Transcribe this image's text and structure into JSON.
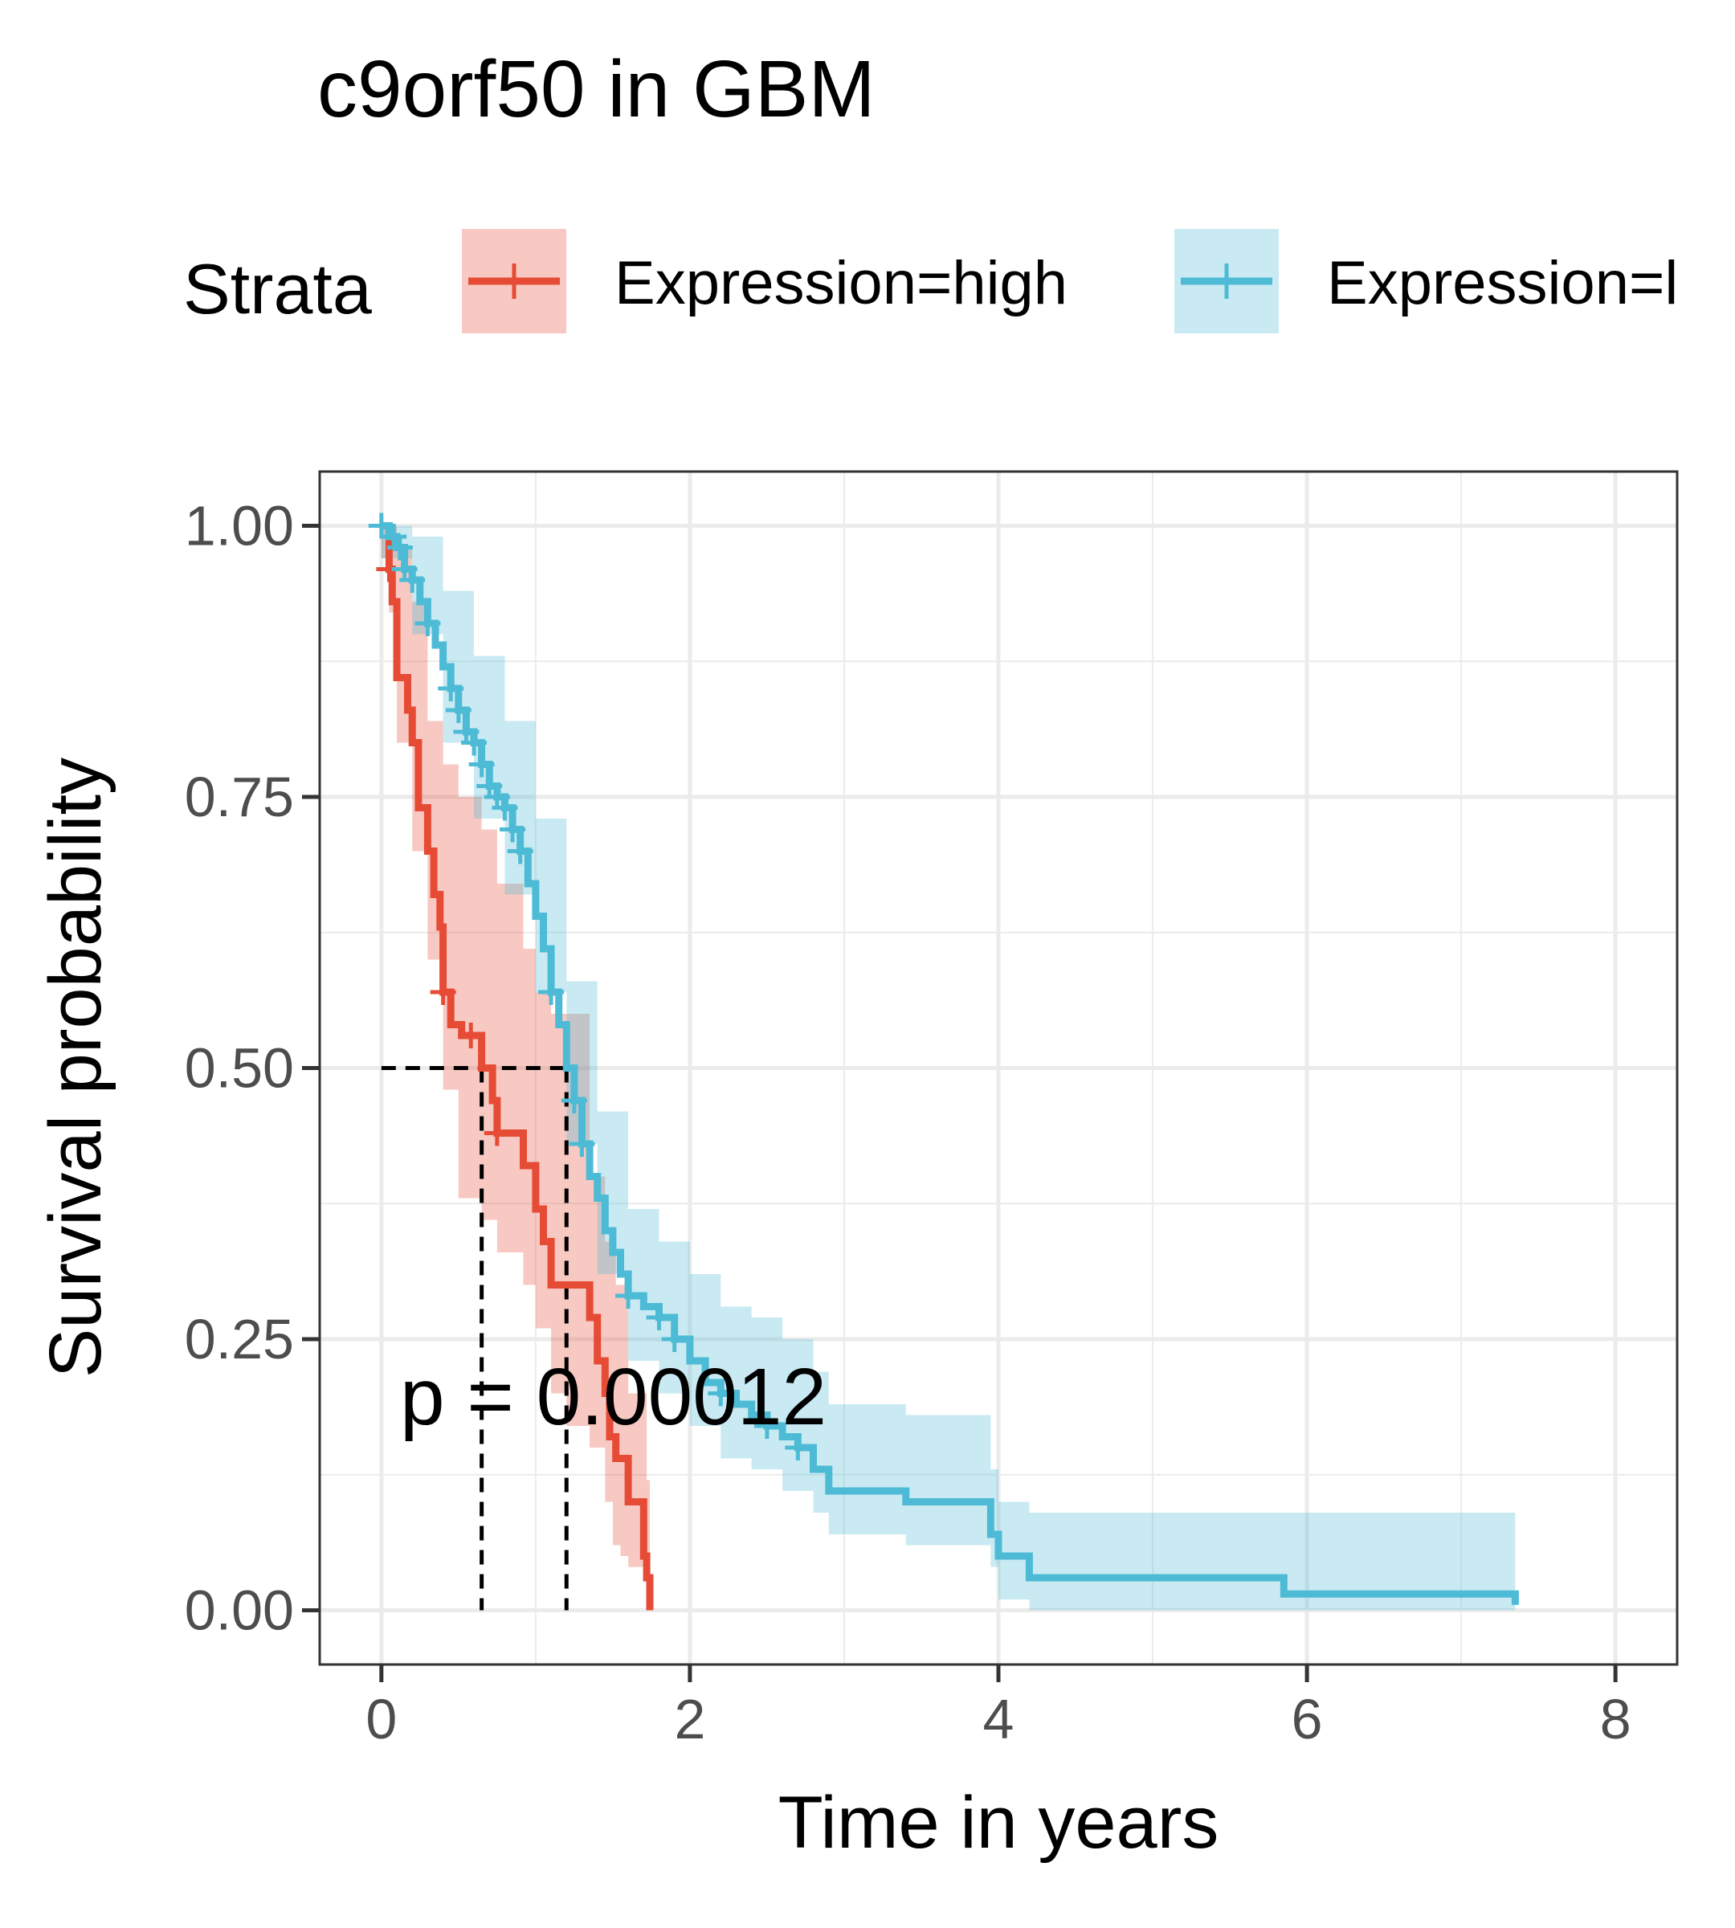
{
  "chart_data": {
    "type": "line",
    "title": "c9orf50 in GBM",
    "xlabel": "Time in years",
    "ylabel": "Survival probability",
    "xlim": [
      -0.4,
      8.4
    ],
    "ylim": [
      -0.05,
      1.05
    ],
    "x_ticks": [
      "0",
      "2",
      "4",
      "6",
      "8"
    ],
    "y_ticks": [
      "0.00",
      "0.25",
      "0.50",
      "0.75",
      "1.00"
    ],
    "grid": true,
    "legend": {
      "title": "Strata",
      "position": "top",
      "entries": [
        "Expression=high",
        "Expression=l"
      ]
    },
    "annotation": "p = 0.00012",
    "median_survival": {
      "y": 0.5,
      "x": [
        0.65,
        1.2
      ]
    },
    "series": [
      {
        "name": "Expression=high",
        "color": "#E64B35",
        "ci_color": "#F4B8AE",
        "steps": [
          [
            0,
            1.0
          ],
          [
            0.05,
            0.96
          ],
          [
            0.07,
            0.93
          ],
          [
            0.1,
            0.86
          ],
          [
            0.17,
            0.83
          ],
          [
            0.2,
            0.8
          ],
          [
            0.24,
            0.74
          ],
          [
            0.3,
            0.7
          ],
          [
            0.34,
            0.66
          ],
          [
            0.38,
            0.63
          ],
          [
            0.4,
            0.57
          ],
          [
            0.45,
            0.54
          ],
          [
            0.52,
            0.53
          ],
          [
            0.65,
            0.5
          ],
          [
            0.72,
            0.47
          ],
          [
            0.75,
            0.44
          ],
          [
            0.92,
            0.41
          ],
          [
            1.0,
            0.37
          ],
          [
            1.05,
            0.34
          ],
          [
            1.1,
            0.3
          ],
          [
            1.35,
            0.27
          ],
          [
            1.4,
            0.23
          ],
          [
            1.45,
            0.2
          ],
          [
            1.48,
            0.16
          ],
          [
            1.52,
            0.14
          ],
          [
            1.6,
            0.1
          ],
          [
            1.7,
            0.05
          ],
          [
            1.72,
            0.03
          ],
          [
            1.74,
            0.0
          ]
        ],
        "ci_lower": [
          [
            0,
            0.97
          ],
          [
            0.05,
            0.92
          ],
          [
            0.1,
            0.8
          ],
          [
            0.2,
            0.7
          ],
          [
            0.3,
            0.6
          ],
          [
            0.4,
            0.48
          ],
          [
            0.5,
            0.38
          ],
          [
            0.65,
            0.36
          ],
          [
            0.75,
            0.33
          ],
          [
            0.92,
            0.3
          ],
          [
            1.0,
            0.26
          ],
          [
            1.1,
            0.2
          ],
          [
            1.2,
            0.17
          ],
          [
            1.35,
            0.15
          ],
          [
            1.45,
            0.1
          ],
          [
            1.5,
            0.06
          ],
          [
            1.55,
            0.05
          ],
          [
            1.6,
            0.04
          ],
          [
            1.72,
            0.0
          ],
          [
            1.74,
            0.0
          ]
        ],
        "ci_upper": [
          [
            0,
            1.0
          ],
          [
            0.1,
            0.98
          ],
          [
            0.2,
            0.93
          ],
          [
            0.3,
            0.82
          ],
          [
            0.4,
            0.78
          ],
          [
            0.5,
            0.75
          ],
          [
            0.65,
            0.72
          ],
          [
            0.75,
            0.67
          ],
          [
            0.92,
            0.61
          ],
          [
            1.0,
            0.57
          ],
          [
            1.1,
            0.55
          ],
          [
            1.35,
            0.4
          ],
          [
            1.45,
            0.34
          ],
          [
            1.52,
            0.3
          ],
          [
            1.6,
            0.2
          ],
          [
            1.72,
            0.12
          ],
          [
            1.74,
            0.0
          ]
        ],
        "censor_x": [
          0.05,
          0.4,
          0.58,
          0.75
        ]
      },
      {
        "name": "Expression=l",
        "color": "#4DBBD5",
        "ci_color": "#C7E8F0",
        "steps": [
          [
            0,
            1.0
          ],
          [
            0.05,
            0.99
          ],
          [
            0.1,
            0.98
          ],
          [
            0.15,
            0.96
          ],
          [
            0.2,
            0.95
          ],
          [
            0.25,
            0.93
          ],
          [
            0.3,
            0.91
          ],
          [
            0.35,
            0.89
          ],
          [
            0.4,
            0.87
          ],
          [
            0.45,
            0.85
          ],
          [
            0.5,
            0.83
          ],
          [
            0.55,
            0.81
          ],
          [
            0.6,
            0.8
          ],
          [
            0.65,
            0.78
          ],
          [
            0.7,
            0.76
          ],
          [
            0.75,
            0.75
          ],
          [
            0.8,
            0.74
          ],
          [
            0.85,
            0.72
          ],
          [
            0.9,
            0.7
          ],
          [
            0.95,
            0.67
          ],
          [
            1.0,
            0.64
          ],
          [
            1.05,
            0.61
          ],
          [
            1.1,
            0.57
          ],
          [
            1.15,
            0.54
          ],
          [
            1.2,
            0.5
          ],
          [
            1.25,
            0.47
          ],
          [
            1.3,
            0.43
          ],
          [
            1.35,
            0.4
          ],
          [
            1.4,
            0.38
          ],
          [
            1.45,
            0.35
          ],
          [
            1.5,
            0.33
          ],
          [
            1.55,
            0.31
          ],
          [
            1.6,
            0.29
          ],
          [
            1.7,
            0.28
          ],
          [
            1.8,
            0.27
          ],
          [
            1.9,
            0.25
          ],
          [
            2.0,
            0.23
          ],
          [
            2.1,
            0.21
          ],
          [
            2.2,
            0.2
          ],
          [
            2.3,
            0.19
          ],
          [
            2.4,
            0.18
          ],
          [
            2.5,
            0.17
          ],
          [
            2.6,
            0.16
          ],
          [
            2.7,
            0.15
          ],
          [
            2.8,
            0.13
          ],
          [
            2.9,
            0.11
          ],
          [
            3.4,
            0.1
          ],
          [
            3.95,
            0.07
          ],
          [
            4.0,
            0.05
          ],
          [
            4.2,
            0.03
          ],
          [
            5.85,
            0.015
          ],
          [
            7.35,
            0.005
          ]
        ],
        "ci_lower": [
          [
            0,
            0.97
          ],
          [
            0.2,
            0.9
          ],
          [
            0.4,
            0.8
          ],
          [
            0.6,
            0.73
          ],
          [
            0.8,
            0.66
          ],
          [
            1.0,
            0.57
          ],
          [
            1.2,
            0.43
          ],
          [
            1.4,
            0.31
          ],
          [
            1.6,
            0.23
          ],
          [
            1.8,
            0.2
          ],
          [
            2.0,
            0.17
          ],
          [
            2.2,
            0.14
          ],
          [
            2.4,
            0.13
          ],
          [
            2.6,
            0.11
          ],
          [
            2.8,
            0.09
          ],
          [
            2.9,
            0.07
          ],
          [
            3.4,
            0.06
          ],
          [
            3.95,
            0.04
          ],
          [
            4.0,
            0.01
          ],
          [
            4.2,
            0.0
          ],
          [
            7.35,
            0.0
          ]
        ],
        "ci_upper": [
          [
            0,
            1.0
          ],
          [
            0.2,
            0.99
          ],
          [
            0.4,
            0.94
          ],
          [
            0.6,
            0.88
          ],
          [
            0.8,
            0.82
          ],
          [
            1.0,
            0.73
          ],
          [
            1.2,
            0.58
          ],
          [
            1.4,
            0.46
          ],
          [
            1.6,
            0.37
          ],
          [
            1.8,
            0.34
          ],
          [
            2.0,
            0.31
          ],
          [
            2.2,
            0.28
          ],
          [
            2.4,
            0.27
          ],
          [
            2.6,
            0.25
          ],
          [
            2.8,
            0.22
          ],
          [
            2.9,
            0.19
          ],
          [
            3.4,
            0.18
          ],
          [
            3.95,
            0.13
          ],
          [
            4.0,
            0.1
          ],
          [
            4.2,
            0.09
          ],
          [
            5.85,
            0.09
          ],
          [
            7.35,
            0.09
          ]
        ],
        "censor_x": [
          0.0,
          0.08,
          0.12,
          0.15,
          0.2,
          0.3,
          0.45,
          0.5,
          0.55,
          0.6,
          0.65,
          0.7,
          0.75,
          0.8,
          0.85,
          0.9,
          1.1,
          1.25,
          1.3,
          1.6,
          1.8,
          1.9,
          2.2,
          2.5,
          2.7
        ]
      }
    ]
  }
}
